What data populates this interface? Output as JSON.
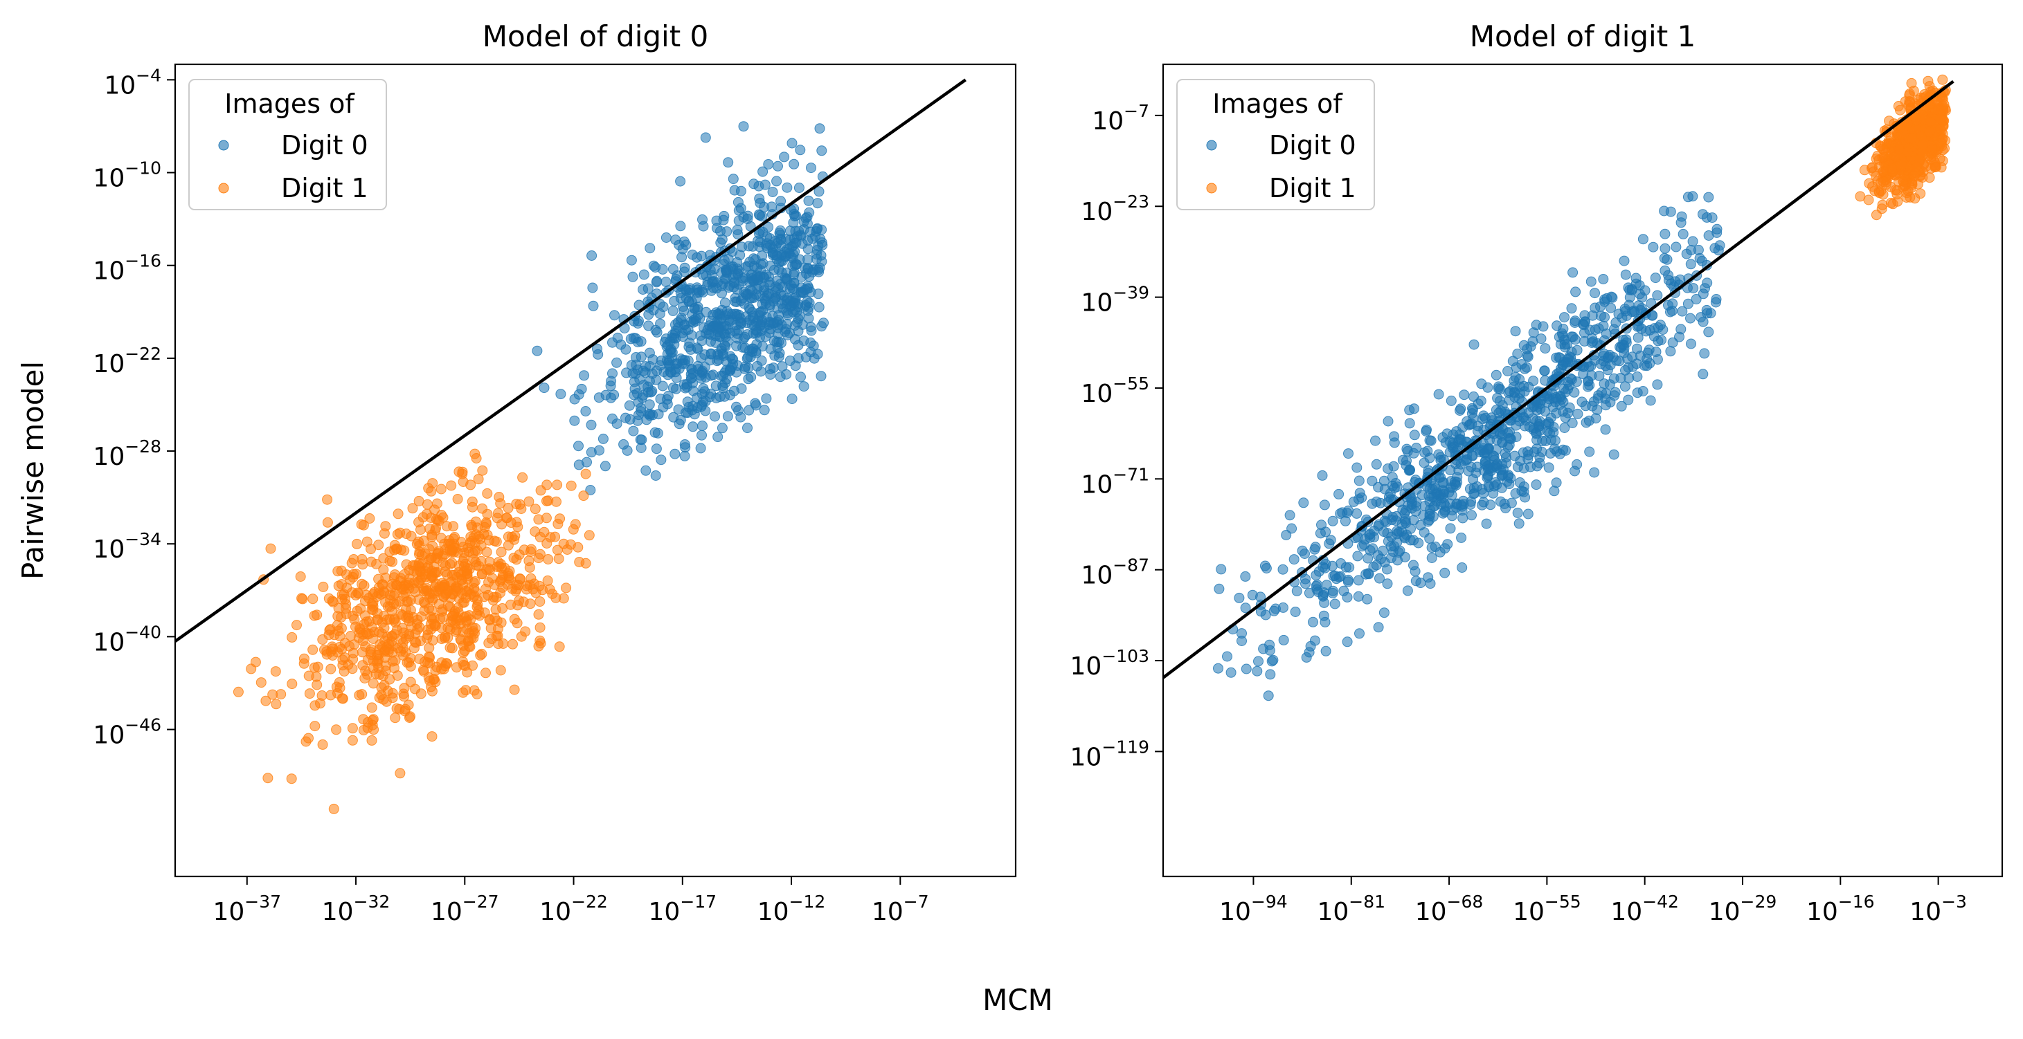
{
  "figure": {
    "xlabel": "MCM",
    "ylabel": "Pairwise model",
    "colors": {
      "digit0": "#1f77b4",
      "digit1": "#ff7f0e",
      "identity_line": "#000000"
    }
  },
  "chart_data": [
    {
      "type": "scatter",
      "title": "Model of digit 0",
      "x_scale": "log",
      "y_scale": "log",
      "xlim_log10": [
        -40.3,
        -1.7
      ],
      "ylim_log10": [
        -55.5,
        -3.0
      ],
      "xticks_log10": [
        -37,
        -32,
        -27,
        -22,
        -17,
        -12,
        -7
      ],
      "yticks_log10": [
        -4,
        -10,
        -16,
        -22,
        -28,
        -34,
        -40,
        -46
      ],
      "tick_base": "10",
      "legend": {
        "title": "Images of",
        "position": "top-left",
        "entries": [
          "Digit 0",
          "Digit 1"
        ]
      },
      "identity_line": {
        "from_log10": [
          -40.3,
          -40.3
        ],
        "to_log10": [
          -4.0,
          -4.0
        ]
      },
      "series": [
        {
          "name": "Digit 0",
          "color": "#1f77b4",
          "count": 900,
          "center_log10": [
            -14.5,
            -19.0
          ],
          "spread_log10": [
            3.2,
            4.2
          ],
          "corr": 0.6,
          "xrange_log10": [
            -24.5,
            -10.5
          ],
          "yrange_log10": [
            -36.0,
            -3.0
          ]
        },
        {
          "name": "Digit 1",
          "color": "#ff7f0e",
          "count": 850,
          "center_log10": [
            -28.5,
            -37.5
          ],
          "spread_log10": [
            3.0,
            3.6
          ],
          "corr": 0.45,
          "xrange_log10": [
            -39.0,
            -21.0
          ],
          "yrange_log10": [
            -54.5,
            -18.0
          ]
        }
      ]
    },
    {
      "type": "scatter",
      "title": "Model of digit 1",
      "x_scale": "log",
      "y_scale": "log",
      "xlim_log10": [
        -106.0,
        5.5
      ],
      "ylim_log10": [
        -141.0,
        2.0
      ],
      "xticks_log10": [
        -94,
        -81,
        -68,
        -55,
        -42,
        -29,
        -16,
        -3
      ],
      "yticks_log10": [
        -7,
        -23,
        -39,
        -55,
        -71,
        -87,
        -103,
        -119
      ],
      "tick_base": "10",
      "legend": {
        "title": "Images of",
        "position": "top-left",
        "entries": [
          "Digit 0",
          "Digit 1"
        ]
      },
      "identity_line": {
        "from_log10": [
          -106.0,
          -106.0
        ],
        "to_log10": [
          -1.0,
          -1.0
        ]
      },
      "series": [
        {
          "name": "Digit 0",
          "color": "#1f77b4",
          "count": 1000,
          "center_log10": [
            -60.0,
            -62.0
          ],
          "spread_log10": [
            17.0,
            19.0
          ],
          "corr": 0.93,
          "xrange_log10": [
            -101.0,
            -32.0
          ],
          "yrange_log10": [
            -134.0,
            -16.0
          ]
        },
        {
          "name": "Digit 1",
          "color": "#ff7f0e",
          "count": 700,
          "center_log10": [
            -5.5,
            -11.0
          ],
          "spread_log10": [
            2.6,
            4.5
          ],
          "corr": 0.6,
          "xrange_log10": [
            -22.0,
            -2.0
          ],
          "yrange_log10": [
            -28.0,
            0.0
          ]
        }
      ]
    }
  ]
}
